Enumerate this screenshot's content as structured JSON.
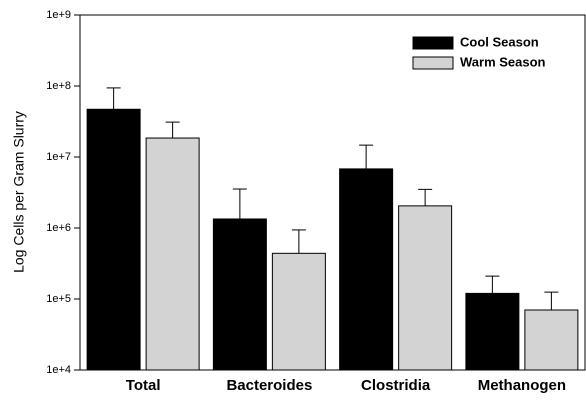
{
  "chart_data": {
    "type": "bar",
    "y_label": "Log Cells per Gram Slurry",
    "categories": [
      "Total",
      "Bacteroides",
      "Clostridia",
      "Methanogen"
    ],
    "series": [
      {
        "name": "Cool Season",
        "color": "#000000",
        "values": [
          47000000,
          1340000,
          6800000,
          120000
        ],
        "errors": [
          47000000,
          2200000,
          7900000,
          90000
        ]
      },
      {
        "name": "Warm Season",
        "color": "#d3d3d3",
        "values": [
          18500000,
          440000,
          2050000,
          70000
        ],
        "errors": [
          12500000,
          500000,
          1450000,
          55000
        ]
      }
    ],
    "yscale": "log",
    "ylim": [
      10000,
      1000000000
    ],
    "yticks": [
      {
        "value": 10000,
        "label": "1e+4"
      },
      {
        "value": 100000,
        "label": "1e+5"
      },
      {
        "value": 1000000,
        "label": "1e+6"
      },
      {
        "value": 10000000,
        "label": "1e+7"
      },
      {
        "value": 100000000,
        "label": "1e+8"
      },
      {
        "value": 1000000000,
        "label": "1e+9"
      }
    ],
    "legend": "top-right",
    "grid": false
  }
}
